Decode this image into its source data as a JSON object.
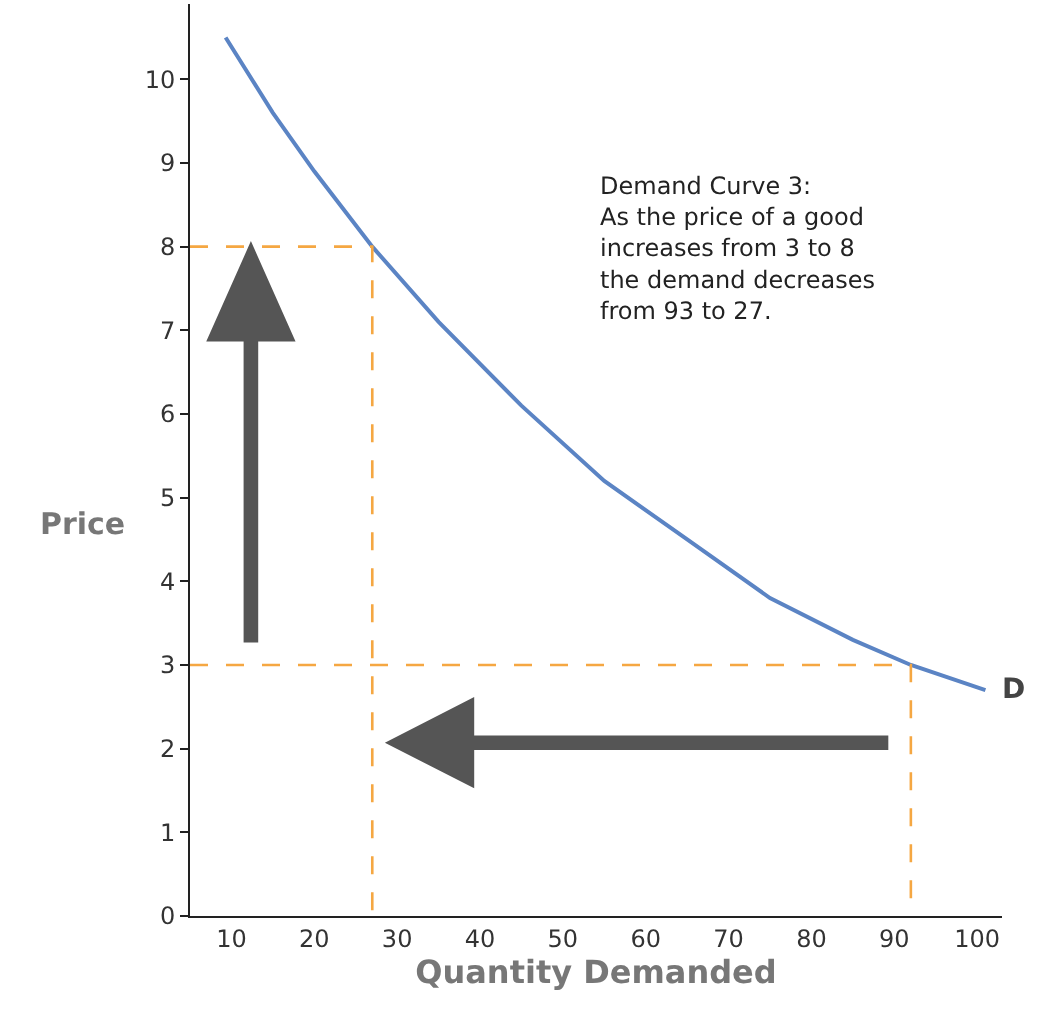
{
  "chart_data": {
    "type": "line",
    "xlabel": "Quantity Demanded",
    "ylabel": "Price",
    "xlim": [
      5,
      103
    ],
    "xticks": [
      10,
      20,
      30,
      40,
      50,
      60,
      70,
      80,
      90,
      100
    ],
    "ylim": [
      0,
      10.9
    ],
    "yticks": [
      0,
      1,
      2,
      3,
      4,
      5,
      6,
      7,
      8,
      9,
      10
    ],
    "marker": "none",
    "series": [
      {
        "color": "#5b84c4",
        "line_style": "solid",
        "x": [
          9.3,
          15,
          20,
          27,
          35,
          45,
          55,
          65,
          75,
          85,
          92,
          101
        ],
        "values": [
          10.5,
          9.6,
          8.9,
          8.0,
          7.1,
          6.1,
          5.2,
          4.5,
          3.8,
          3.3,
          3.0,
          2.7
        ]
      },
      {
        "color": "#f5a742",
        "line_style": "dashed",
        "x": [
          5,
          27,
          27
        ],
        "values": [
          8,
          8,
          0
        ]
      },
      {
        "color": "#f5a742",
        "line_style": "dashed",
        "x": [
          5,
          92,
          92
        ],
        "values": [
          3,
          3,
          0
        ]
      }
    ],
    "annotations": [
      "Demand Curve 3:\nAs the price of a good\nincreases from 3 to 8\nthe demand decreases\nfrom 93 to 27.",
      {
        "text": "D",
        "x": 101,
        "y": 2.7
      }
    ]
  }
}
